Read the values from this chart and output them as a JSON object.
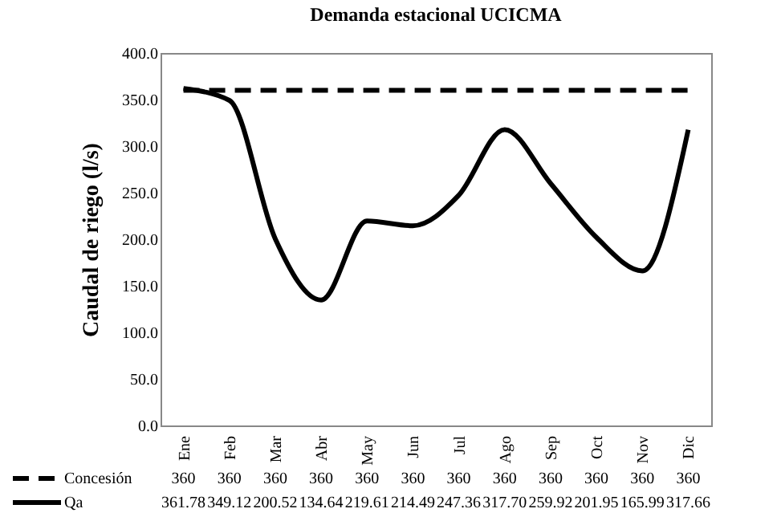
{
  "chart_data": {
    "type": "line",
    "title": "Demanda estacional UCICMA",
    "ylabel": "Caudal de riego (l/s)",
    "categories": [
      "Ene",
      "Feb",
      "Mar",
      "Abr",
      "May",
      "Jun",
      "Jul",
      "Ago",
      "Sep",
      "Oct",
      "Nov",
      "Dic"
    ],
    "series": [
      {
        "name": "Concesión",
        "color": "#000000",
        "line_style": "dashed",
        "values": [
          360,
          360,
          360,
          360,
          360,
          360,
          360,
          360,
          360,
          360,
          360,
          360
        ],
        "value_labels": [
          "360",
          "360",
          "360",
          "360",
          "360",
          "360",
          "360",
          "360",
          "360",
          "360",
          "360",
          "360"
        ]
      },
      {
        "name": "Qa",
        "color": "#000000",
        "line_style": "solid",
        "values": [
          361.78,
          349.12,
          200.52,
          134.64,
          219.61,
          214.49,
          247.36,
          317.7,
          259.92,
          201.95,
          165.99,
          317.66
        ],
        "value_labels": [
          "361.78",
          "349.12",
          "200.52",
          "134.64",
          "219.61",
          "214.49",
          "247.36",
          "317.70",
          "259.92",
          "201.95",
          "165.99",
          "317.66"
        ]
      }
    ],
    "ylim": [
      0,
      400
    ],
    "yticks": [
      {
        "value": 0,
        "label": "0.0"
      },
      {
        "value": 50,
        "label": "50.0"
      },
      {
        "value": 100,
        "label": "100.0"
      },
      {
        "value": 150,
        "label": "150.0"
      },
      {
        "value": 200,
        "label": "200.0"
      },
      {
        "value": 250,
        "label": "250.0"
      },
      {
        "value": 300,
        "label": "300.0"
      },
      {
        "value": 350,
        "label": "350.0"
      },
      {
        "value": 400,
        "label": "400.0"
      }
    ],
    "legend": "bottom"
  }
}
